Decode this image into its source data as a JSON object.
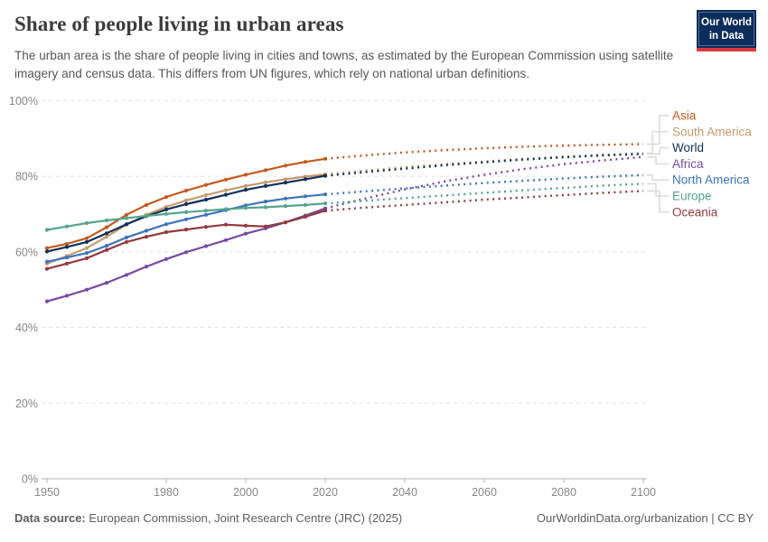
{
  "header": {
    "title": "Share of people living in urban areas",
    "subtitle": "The urban area is the share of people living in cities and towns, as estimated by the European Commission using satellite imagery and census data. This differs from UN figures, which rely on national urban definitions.",
    "logo_line1": "Our World",
    "logo_line2": "in Data"
  },
  "footer": {
    "source_label": "Data source:",
    "source_text": "European Commission, Joint Research Centre (JRC) (2025)",
    "rights": "OurWorldinData.org/urbanization | CC BY"
  },
  "brand": {
    "logo_navy": "#0d2e5b",
    "logo_red": "#dc3a41",
    "grid_color": "#e2e2e2",
    "axis_color": "#b3b3b3",
    "tick_text_color": "#878787",
    "connector_color": "#dadada"
  },
  "chart_data": {
    "type": "line",
    "title": "Share of people living in urban areas",
    "xlabel": "",
    "ylabel": "",
    "xlim": [
      1950,
      2100
    ],
    "ylim": [
      0,
      100
    ],
    "grid": "horizontal-dashed",
    "legend_position": "right",
    "projection_start_year": 2020,
    "x_axis": {
      "ticks": [
        1950,
        1980,
        2000,
        2020,
        2040,
        2060,
        2080,
        2100
      ]
    },
    "y_axis": {
      "ticks": [
        0,
        20,
        40,
        60,
        80,
        100
      ],
      "suffix": "%"
    },
    "years_observed": [
      1950,
      1955,
      1960,
      1965,
      1970,
      1975,
      1980,
      1985,
      1990,
      1995,
      2000,
      2005,
      2010,
      2015,
      2020
    ],
    "years_projected": [
      2020,
      2030,
      2040,
      2050,
      2060,
      2070,
      2080,
      2090,
      2100
    ],
    "series": [
      {
        "name": "Asia",
        "color": "#c4591d",
        "observed": [
          61.0,
          62.1,
          63.6,
          66.5,
          69.8,
          72.4,
          74.5,
          76.2,
          77.7,
          79.1,
          80.4,
          81.6,
          82.8,
          83.8,
          84.6
        ],
        "projected": [
          84.6,
          85.5,
          86.3,
          86.9,
          87.4,
          87.8,
          88.1,
          88.3,
          88.5
        ]
      },
      {
        "name": "South America",
        "color": "#c89a6c",
        "observed": [
          56.9,
          58.9,
          61.0,
          64.0,
          67.2,
          69.8,
          71.9,
          73.6,
          75.0,
          76.3,
          77.4,
          78.4,
          79.2,
          79.9,
          80.5
        ],
        "projected": [
          80.5,
          81.5,
          82.4,
          83.2,
          83.9,
          84.6,
          85.2,
          85.7,
          86.1
        ]
      },
      {
        "name": "World",
        "color": "#10305b",
        "observed": [
          60.1,
          61.3,
          62.6,
          64.9,
          67.3,
          69.4,
          71.2,
          72.6,
          73.8,
          75.1,
          76.4,
          77.4,
          78.3,
          79.2,
          80.1
        ],
        "projected": [
          80.1,
          81.1,
          82.0,
          82.9,
          83.7,
          84.4,
          85.0,
          85.5,
          85.9
        ]
      },
      {
        "name": "Africa",
        "color": "#764ba4",
        "observed": [
          46.9,
          48.4,
          50.0,
          51.8,
          53.9,
          56.1,
          58.1,
          59.9,
          61.5,
          63.1,
          64.8,
          66.2,
          67.8,
          69.6,
          71.5
        ],
        "projected": [
          71.5,
          74.1,
          76.5,
          78.6,
          80.4,
          81.9,
          83.2,
          84.2,
          85.1
        ]
      },
      {
        "name": "North America",
        "color": "#3d73be",
        "observed": [
          57.4,
          58.5,
          59.7,
          61.6,
          63.8,
          65.6,
          67.3,
          68.6,
          69.8,
          71.0,
          72.3,
          73.3,
          74.1,
          74.7,
          75.2
        ],
        "projected": [
          75.2,
          76.0,
          76.8,
          77.5,
          78.2,
          78.8,
          79.4,
          79.9,
          80.3
        ]
      },
      {
        "name": "Europe",
        "color": "#55a48b",
        "observed": [
          65.8,
          66.7,
          67.6,
          68.3,
          68.9,
          69.5,
          70.0,
          70.5,
          70.9,
          71.3,
          71.6,
          71.8,
          72.1,
          72.4,
          72.8
        ],
        "projected": [
          72.8,
          73.5,
          74.2,
          74.9,
          75.6,
          76.3,
          76.9,
          77.5,
          78.0
        ]
      },
      {
        "name": "Oceania",
        "color": "#923a3f",
        "observed": [
          55.5,
          56.9,
          58.3,
          60.5,
          62.6,
          64.0,
          65.2,
          65.9,
          66.6,
          67.2,
          66.9,
          66.7,
          67.8,
          69.3,
          70.9
        ],
        "projected": [
          70.9,
          71.7,
          72.4,
          73.1,
          73.8,
          74.4,
          75.0,
          75.6,
          76.1
        ]
      }
    ],
    "legend_order": [
      "Asia",
      "South America",
      "World",
      "Africa",
      "North America",
      "Europe",
      "Oceania"
    ]
  }
}
